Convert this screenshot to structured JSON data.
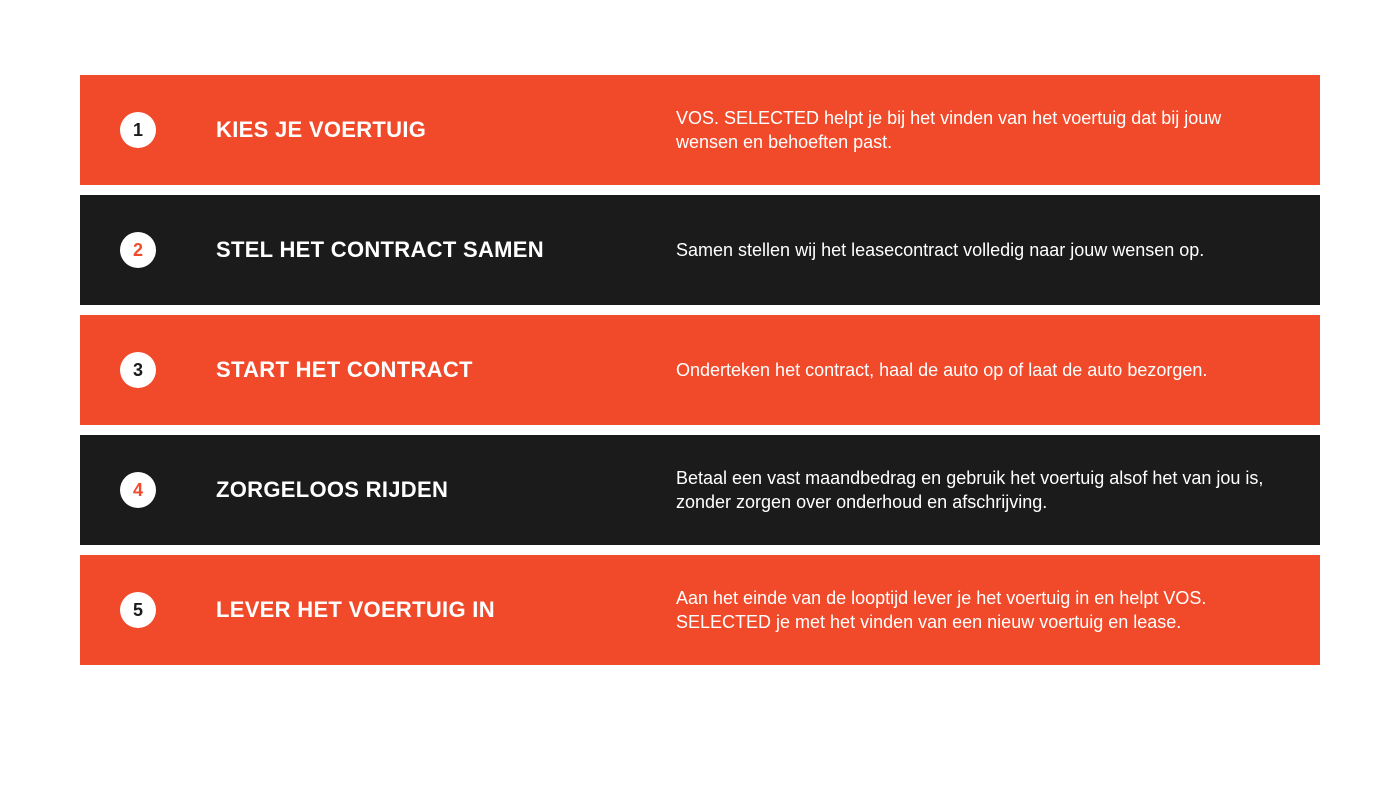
{
  "infographic": {
    "type": "infographic",
    "background_color": "#ffffff",
    "row_gap": 10,
    "row_min_height": 110,
    "row_padding_v": 28,
    "row_padding_h": 40,
    "colors": {
      "orange": "#f14a2b",
      "dark": "#1b1b1c",
      "circle_bg": "#ffffff",
      "text": "#ffffff"
    },
    "typography": {
      "title_fontsize": 22,
      "title_fontweight": 800,
      "description_fontsize": 18,
      "number_fontsize": 18,
      "number_fontweight": 800,
      "font_family": "Arial"
    },
    "circle": {
      "diameter": 36,
      "margin_right": 60
    },
    "title_column_width": 460,
    "steps": [
      {
        "number": "1",
        "title": "KIES JE VOERTUIG",
        "description": "VOS. SELECTED helpt je bij het vinden van het voertuig dat bij jouw wensen en behoeften past.",
        "bg": "orange",
        "number_color": "#1b1b1c"
      },
      {
        "number": "2",
        "title": "STEL HET CONTRACT SAMEN",
        "description": "Samen stellen wij het leasecontract volledig naar jouw wensen op.",
        "bg": "dark",
        "number_color": "#f14a2b"
      },
      {
        "number": "3",
        "title": "START HET CONTRACT",
        "description": "Onderteken het contract, haal de auto op of laat de auto bezorgen.",
        "bg": "orange",
        "number_color": "#1b1b1c"
      },
      {
        "number": "4",
        "title": "ZORGELOOS RIJDEN",
        "description": "Betaal een vast maandbedrag en gebruik het voertuig alsof het van jou is, zonder zorgen over onderhoud en afschrijving.",
        "bg": "dark",
        "number_color": "#f14a2b"
      },
      {
        "number": "5",
        "title": "LEVER HET VOERTUIG IN",
        "description": "Aan het einde van de looptijd lever je het voertuig in en helpt VOS. SELECTED je met het vinden van een nieuw voertuig en lease.",
        "bg": "orange",
        "number_color": "#1b1b1c"
      }
    ]
  }
}
